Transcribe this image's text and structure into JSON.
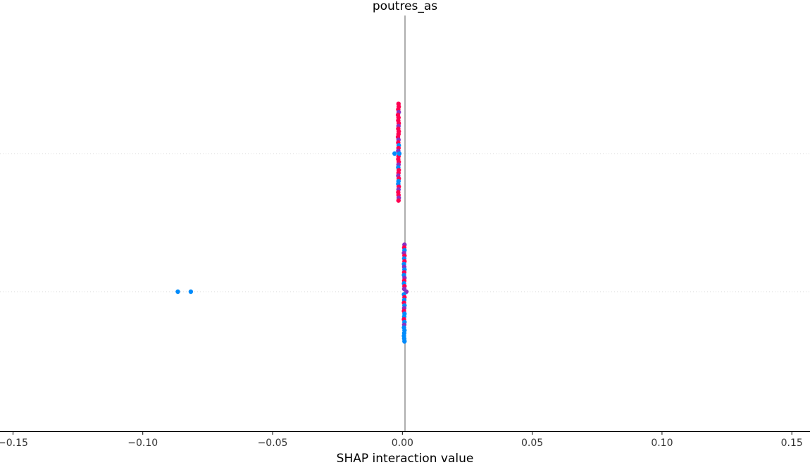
{
  "chart_data": {
    "type": "scatter",
    "title": "poutres_as",
    "xlabel": "SHAP interaction value",
    "ylabel": "",
    "xlim": [
      -0.155,
      0.157
    ],
    "xticks": [
      -0.15,
      -0.1,
      -0.05,
      0.0,
      0.05,
      0.1,
      0.15
    ],
    "xtick_labels": [
      "−0.15",
      "−0.10",
      "−0.05",
      "0.00",
      "0.05",
      "0.10",
      "0.15"
    ],
    "rows": 2,
    "grid": false,
    "colors": {
      "high": "#ff0052",
      "low": "#008bfb",
      "mid": "#8a2fc0"
    },
    "series": [
      {
        "row": 0,
        "points": [
          {
            "x": -0.0015,
            "y": 0.36,
            "c": "high"
          },
          {
            "x": -0.0014,
            "y": 0.34,
            "c": "high"
          },
          {
            "x": -0.0016,
            "y": 0.32,
            "c": "high"
          },
          {
            "x": -0.0014,
            "y": 0.3,
            "c": "mid"
          },
          {
            "x": -0.0017,
            "y": 0.28,
            "c": "high"
          },
          {
            "x": -0.0015,
            "y": 0.26,
            "c": "high"
          },
          {
            "x": -0.0016,
            "y": 0.24,
            "c": "high"
          },
          {
            "x": -0.0014,
            "y": 0.22,
            "c": "high"
          },
          {
            "x": -0.0015,
            "y": 0.2,
            "c": "mid"
          },
          {
            "x": -0.0016,
            "y": 0.18,
            "c": "high"
          },
          {
            "x": -0.0014,
            "y": 0.16,
            "c": "high"
          },
          {
            "x": -0.0015,
            "y": 0.14,
            "c": "high"
          },
          {
            "x": -0.0017,
            "y": 0.12,
            "c": "high"
          },
          {
            "x": -0.0015,
            "y": 0.1,
            "c": "mid"
          },
          {
            "x": -0.0016,
            "y": 0.08,
            "c": "high"
          },
          {
            "x": -0.0014,
            "y": 0.06,
            "c": "low"
          },
          {
            "x": -0.0015,
            "y": 0.04,
            "c": "high"
          },
          {
            "x": -0.0016,
            "y": 0.02,
            "c": "mid"
          },
          {
            "x": -0.003,
            "y": 0.0,
            "c": "low"
          },
          {
            "x": -0.0015,
            "y": -0.02,
            "c": "high"
          },
          {
            "x": -0.0016,
            "y": -0.04,
            "c": "high"
          },
          {
            "x": -0.0014,
            "y": -0.06,
            "c": "high"
          },
          {
            "x": -0.0015,
            "y": -0.08,
            "c": "mid"
          },
          {
            "x": -0.0016,
            "y": -0.1,
            "c": "low"
          },
          {
            "x": -0.0014,
            "y": -0.12,
            "c": "high"
          },
          {
            "x": -0.0015,
            "y": -0.14,
            "c": "high"
          },
          {
            "x": -0.0016,
            "y": -0.16,
            "c": "mid"
          },
          {
            "x": -0.0014,
            "y": -0.18,
            "c": "high"
          },
          {
            "x": -0.0015,
            "y": -0.2,
            "c": "low"
          },
          {
            "x": -0.0016,
            "y": -0.22,
            "c": "low"
          },
          {
            "x": -0.0014,
            "y": -0.24,
            "c": "high"
          },
          {
            "x": -0.0015,
            "y": -0.26,
            "c": "mid"
          },
          {
            "x": -0.0016,
            "y": -0.28,
            "c": "high"
          },
          {
            "x": -0.0015,
            "y": -0.3,
            "c": "high"
          },
          {
            "x": -0.0014,
            "y": -0.32,
            "c": "mid"
          },
          {
            "x": -0.0015,
            "y": -0.34,
            "c": "high"
          },
          {
            "x": -0.0012,
            "y": 0.0,
            "c": "low"
          }
        ]
      },
      {
        "row": 1,
        "points": [
          {
            "x": -0.0865,
            "y": 0.0,
            "c": "low"
          },
          {
            "x": -0.0815,
            "y": 0.0,
            "c": "low"
          },
          {
            "x": 0.0008,
            "y": 0.34,
            "c": "mid"
          },
          {
            "x": 0.0007,
            "y": 0.32,
            "c": "high"
          },
          {
            "x": 0.0008,
            "y": 0.3,
            "c": "low"
          },
          {
            "x": 0.0006,
            "y": 0.28,
            "c": "mid"
          },
          {
            "x": 0.0008,
            "y": 0.26,
            "c": "high"
          },
          {
            "x": 0.0007,
            "y": 0.24,
            "c": "low"
          },
          {
            "x": 0.0008,
            "y": 0.22,
            "c": "high"
          },
          {
            "x": 0.0006,
            "y": 0.2,
            "c": "low"
          },
          {
            "x": 0.0007,
            "y": 0.18,
            "c": "mid"
          },
          {
            "x": 0.0008,
            "y": 0.16,
            "c": "low"
          },
          {
            "x": 0.0007,
            "y": 0.14,
            "c": "high"
          },
          {
            "x": 0.0006,
            "y": 0.12,
            "c": "low"
          },
          {
            "x": 0.0008,
            "y": 0.1,
            "c": "mid"
          },
          {
            "x": 0.0007,
            "y": 0.08,
            "c": "high"
          },
          {
            "x": 0.0006,
            "y": 0.06,
            "c": "low"
          },
          {
            "x": 0.0008,
            "y": 0.04,
            "c": "high"
          },
          {
            "x": 0.0007,
            "y": 0.02,
            "c": "mid"
          },
          {
            "x": 0.0015,
            "y": 0.0,
            "c": "mid"
          },
          {
            "x": 0.0006,
            "y": -0.02,
            "c": "low"
          },
          {
            "x": 0.0008,
            "y": -0.04,
            "c": "high"
          },
          {
            "x": 0.0007,
            "y": -0.06,
            "c": "low"
          },
          {
            "x": 0.0006,
            "y": -0.08,
            "c": "high"
          },
          {
            "x": 0.0008,
            "y": -0.1,
            "c": "low"
          },
          {
            "x": 0.0007,
            "y": -0.12,
            "c": "mid"
          },
          {
            "x": 0.0006,
            "y": -0.14,
            "c": "high"
          },
          {
            "x": 0.0008,
            "y": -0.16,
            "c": "low"
          },
          {
            "x": 0.0007,
            "y": -0.18,
            "c": "low"
          },
          {
            "x": 0.0006,
            "y": -0.2,
            "c": "high"
          },
          {
            "x": 0.0008,
            "y": -0.22,
            "c": "low"
          },
          {
            "x": 0.0007,
            "y": -0.24,
            "c": "mid"
          },
          {
            "x": 0.0006,
            "y": -0.26,
            "c": "low"
          },
          {
            "x": 0.0008,
            "y": -0.28,
            "c": "low"
          },
          {
            "x": 0.0007,
            "y": -0.3,
            "c": "low"
          },
          {
            "x": 0.0006,
            "y": -0.32,
            "c": "low"
          },
          {
            "x": 0.0007,
            "y": -0.34,
            "c": "low"
          },
          {
            "x": 0.0008,
            "y": -0.36,
            "c": "low"
          }
        ]
      }
    ]
  }
}
